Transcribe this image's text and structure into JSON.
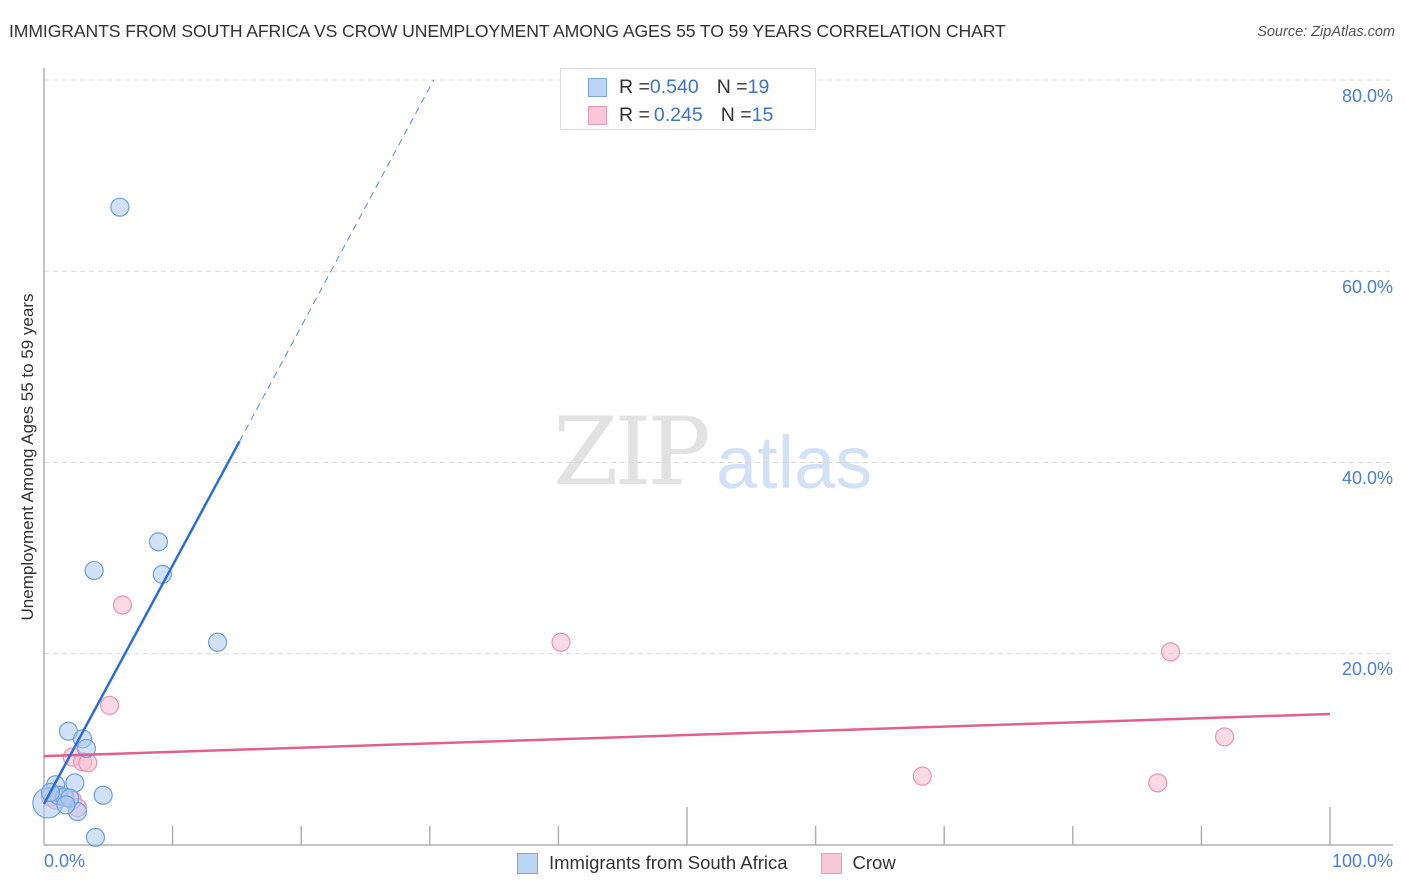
{
  "header": {
    "title": "IMMIGRANTS FROM SOUTH AFRICA VS CROW UNEMPLOYMENT AMONG AGES 55 TO 59 YEARS CORRELATION CHART",
    "source": "Source: ZipAtlas.com"
  },
  "watermark": {
    "zip": "ZIP",
    "atlas": "atlas"
  },
  "legend_top": {
    "rows": [
      {
        "r_label": "R = ",
        "r_value": "0.540",
        "n_label": "N = ",
        "n_value": "19"
      },
      {
        "r_label": "R = ",
        "r_value": "0.245",
        "n_label": "N = ",
        "n_value": "15"
      }
    ]
  },
  "legend_bottom": {
    "items": [
      {
        "label": "Immigrants from South Africa"
      },
      {
        "label": "Crow"
      }
    ]
  },
  "axes": {
    "ylabel": "Unemployment Among Ages 55 to 59 years",
    "x_tick_labels": {
      "left": "0.0%",
      "right": "100.0%"
    },
    "y_tick_labels": [
      "80.0%",
      "60.0%",
      "40.0%",
      "20.0%"
    ]
  },
  "colors": {
    "blue_fill": "#a9c8f2",
    "blue_stroke": "#6e9fe2",
    "blue_line": "#2b6fd5",
    "pink_fill": "#f7bcd0",
    "pink_stroke": "#ec93b2",
    "pink_line": "#e2618c",
    "axis": "#b0b0b0",
    "grid": "#d9d9d9",
    "tick_label": "#4a7fd4"
  },
  "chart_data": {
    "type": "scatter",
    "title": "IMMIGRANTS FROM SOUTH AFRICA VS CROW UNEMPLOYMENT AMONG AGES 55 TO 59 YEARS CORRELATION CHART",
    "xlabel": "",
    "ylabel": "Unemployment Among Ages 55 to 59 years",
    "xlim": [
      0,
      100
    ],
    "ylim": [
      0,
      80
    ],
    "x_ticks": [
      0,
      10,
      20,
      30,
      40,
      50,
      60,
      70,
      80,
      90,
      100
    ],
    "x_major_ticks": [
      50,
      100
    ],
    "x_tick_labels": [
      "0.0%",
      "100.0%"
    ],
    "y_ticks": [
      20,
      40,
      60,
      80
    ],
    "y_tick_labels": [
      "20.0%",
      "40.0%",
      "60.0%",
      "80.0%"
    ],
    "grid": {
      "horizontal": true,
      "vertical": false,
      "style": "dashed"
    },
    "legend_position": "top-center and bottom-center",
    "series": [
      {
        "name": "Immigrants from South Africa",
        "color": "#6e9fe2",
        "R": 0.54,
        "N": 19,
        "points": [
          {
            "x": 5.9,
            "y": 66.7
          },
          {
            "x": 8.9,
            "y": 31.7
          },
          {
            "x": 3.9,
            "y": 28.7
          },
          {
            "x": 9.2,
            "y": 28.3
          },
          {
            "x": 13.5,
            "y": 21.2
          },
          {
            "x": 1.9,
            "y": 11.9
          },
          {
            "x": 3.0,
            "y": 11.1
          },
          {
            "x": 3.3,
            "y": 10.1
          },
          {
            "x": 0.9,
            "y": 6.3
          },
          {
            "x": 2.4,
            "y": 6.5
          },
          {
            "x": 4.6,
            "y": 5.2
          },
          {
            "x": 2.6,
            "y": 3.5
          },
          {
            "x": 4.0,
            "y": 0.8
          },
          {
            "x": 0.3,
            "y": 4.4,
            "size": "large"
          },
          {
            "x": 1.1,
            "y": 5.2
          },
          {
            "x": 1.6,
            "y": 5.0
          },
          {
            "x": 2.0,
            "y": 4.9
          },
          {
            "x": 0.5,
            "y": 5.5
          },
          {
            "x": 1.7,
            "y": 4.2
          }
        ],
        "trendline": {
          "x0": 0,
          "y0": 4.3,
          "x_solid_end": 15.2,
          "y_solid_end": 42.2,
          "x_dash_end": 30.3,
          "y_dash_end": 80
        }
      },
      {
        "name": "Crow",
        "color": "#ec93b2",
        "R": 0.245,
        "N": 15,
        "points": [
          {
            "x": 6.1,
            "y": 25.1
          },
          {
            "x": 40.2,
            "y": 21.2
          },
          {
            "x": 87.6,
            "y": 20.2
          },
          {
            "x": 5.1,
            "y": 14.6
          },
          {
            "x": 2.2,
            "y": 9.2
          },
          {
            "x": 3.0,
            "y": 8.7
          },
          {
            "x": 3.4,
            "y": 8.6
          },
          {
            "x": 91.8,
            "y": 11.3
          },
          {
            "x": 68.3,
            "y": 7.2
          },
          {
            "x": 86.6,
            "y": 6.5
          },
          {
            "x": 0.5,
            "y": 5.0
          },
          {
            "x": 1.2,
            "y": 5.2
          },
          {
            "x": 2.2,
            "y": 4.7
          },
          {
            "x": 2.6,
            "y": 3.9
          },
          {
            "x": 0.9,
            "y": 4.7
          }
        ],
        "trendline": {
          "x0": 0,
          "y0": 9.3,
          "x1": 100,
          "y1": 13.7
        }
      }
    ]
  }
}
